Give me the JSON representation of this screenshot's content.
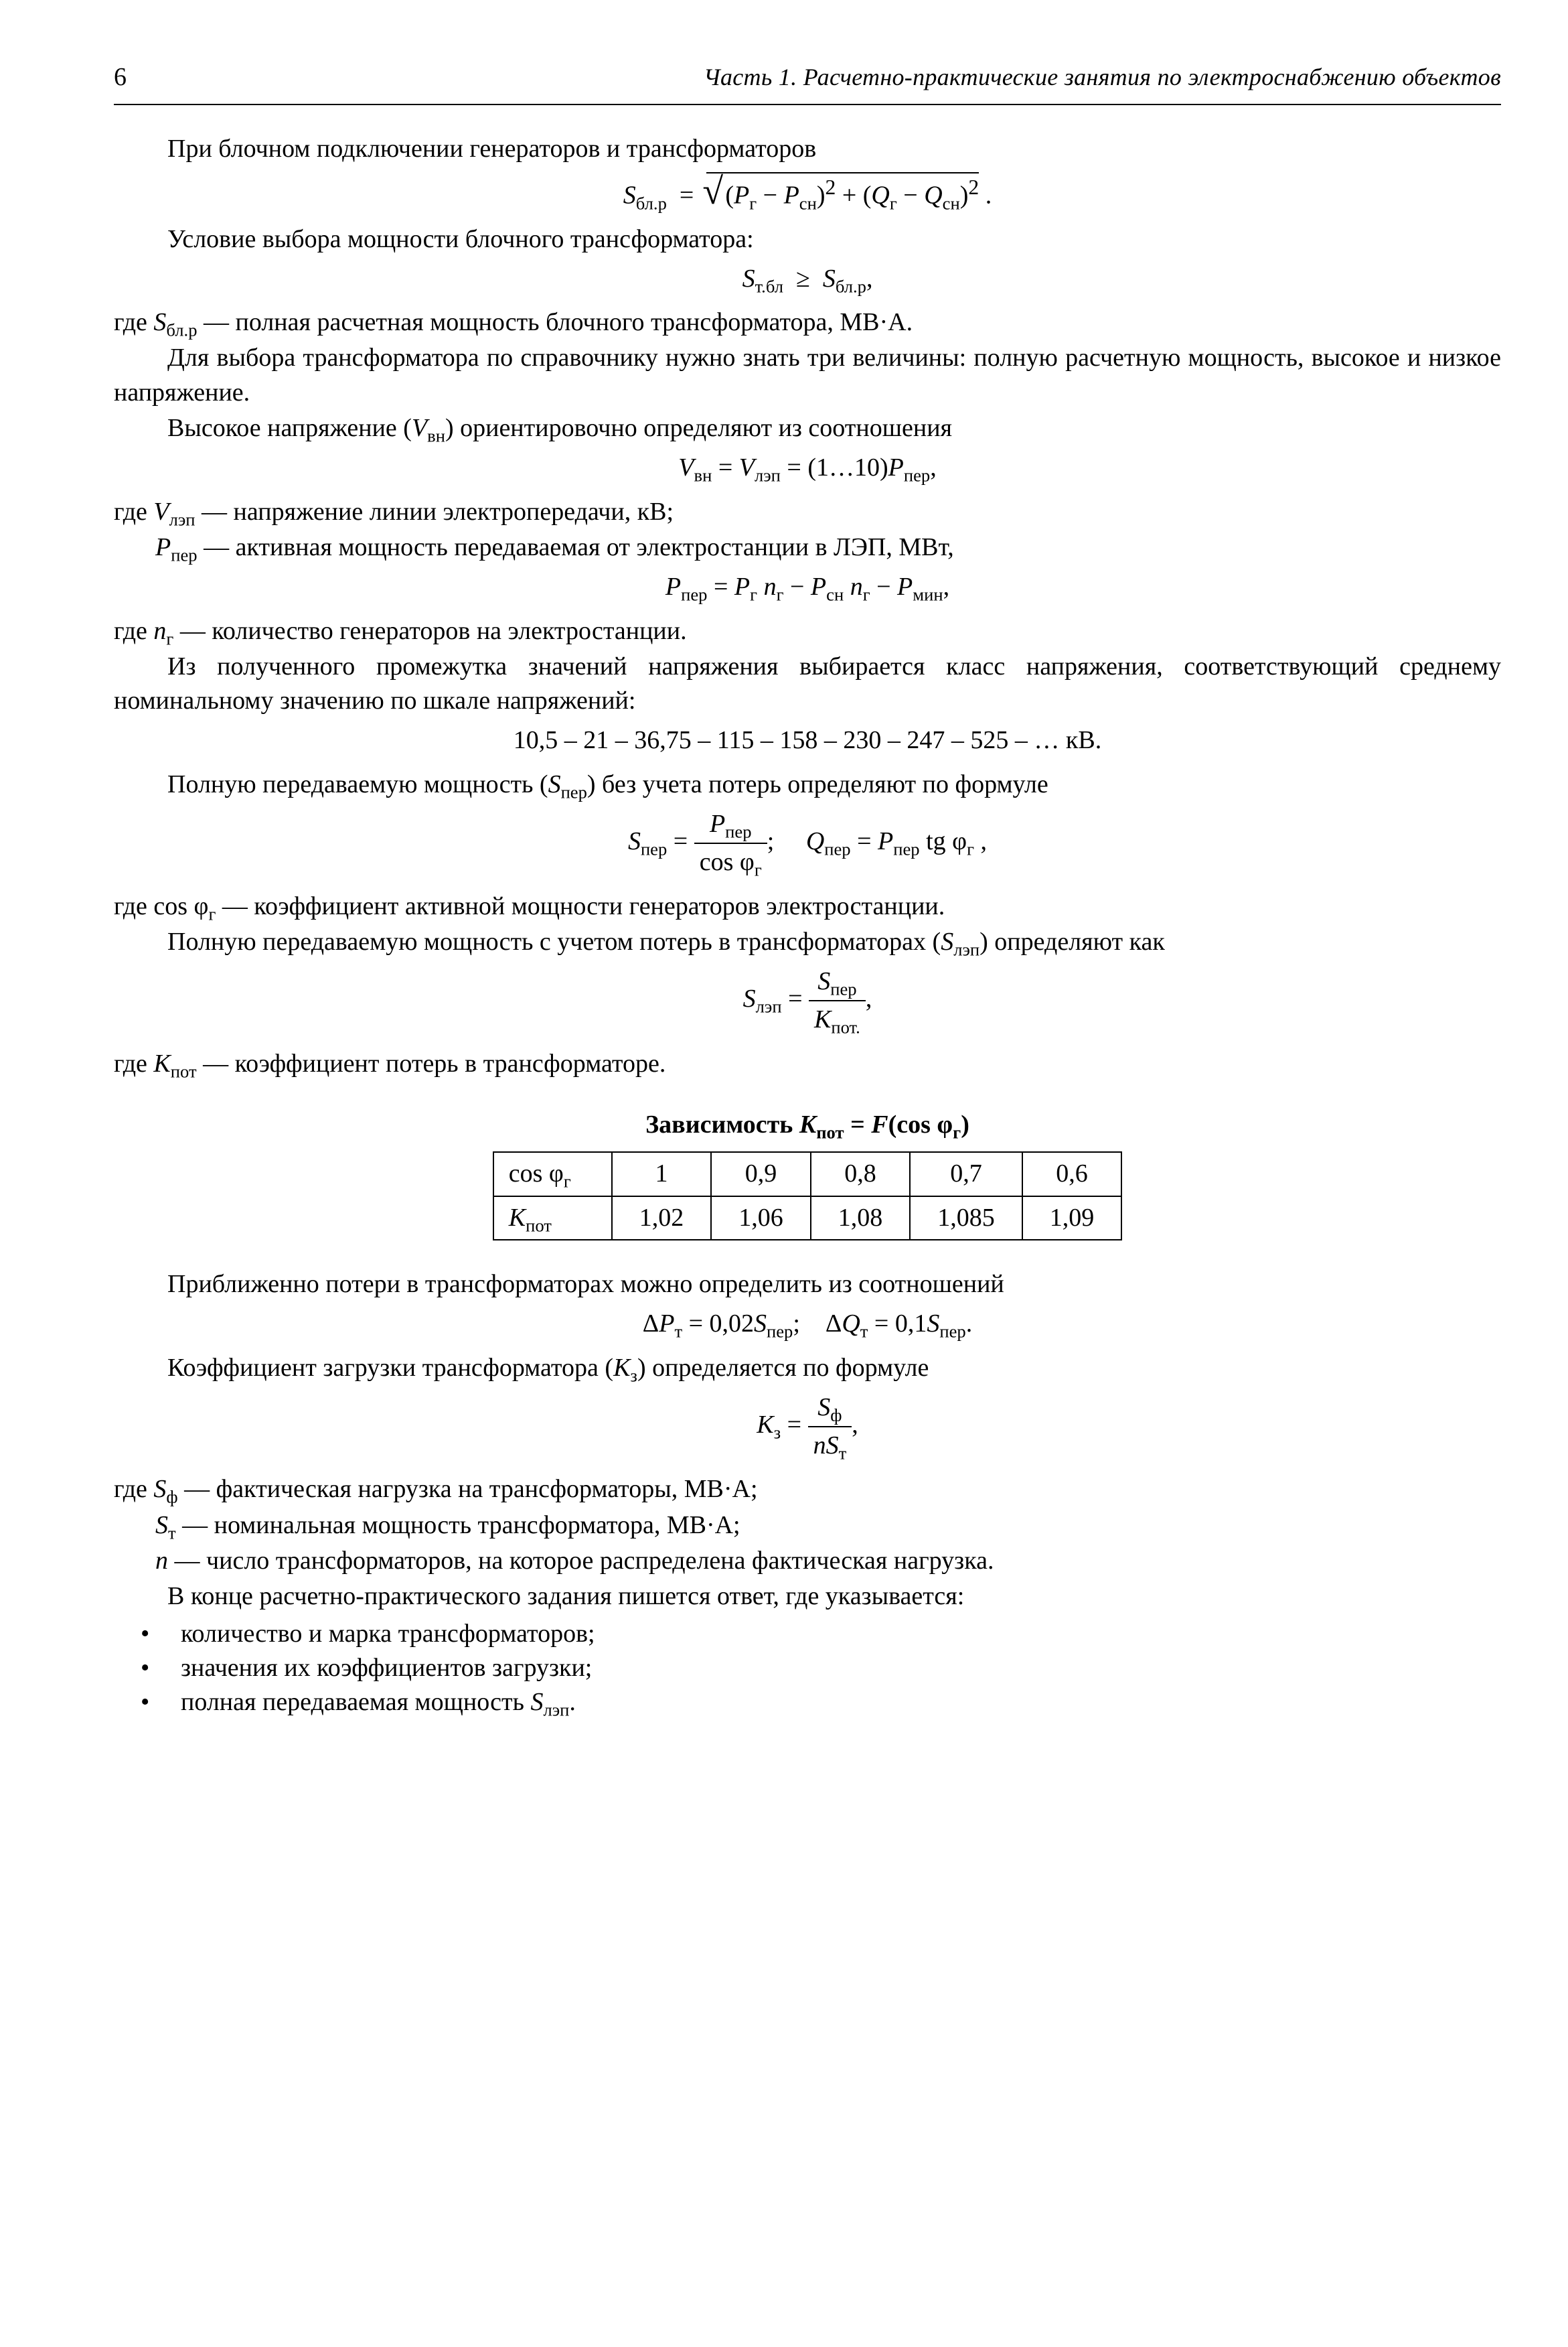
{
  "page_number": "6",
  "running_title": "Часть 1. Расчетно-практические занятия по электроснабжению объектов",
  "p_intro": "При блочном подключении генераторов и трансформаторов",
  "eq1": {
    "lhs": "S",
    "sub_lhs": "бл.р",
    "sqrt_inner": "(P_r − P_сн)² + (Q_r − Q_сн)² ."
  },
  "p_cond": "Условие выбора мощности блочного трансформатора:",
  "eq2": {
    "lhs": "S",
    "sub_lhs": "т.бл",
    "op": "≥",
    "rhs": "S",
    "sub_rhs": "бл.р",
    "tail": ","
  },
  "w1": {
    "sym": "S",
    "sub": "бл.р",
    "text": " — полная расчетная мощность блочного трансформатора, МВ·А."
  },
  "p_ref": "Для выбора трансформатора по справочнику нужно знать три величины: полную расчетную мощность, высокое и низкое напряжение.",
  "p_high": "Высокое напряжение (V_вн) ориентировочно определяют из соотношения",
  "eq3": {
    "l": "V",
    "ls": "вн",
    "m": "V",
    "ms": "лэп",
    "r_coef": "(1…10)",
    "r": "P",
    "rs": "пер",
    "tail": ","
  },
  "w2": [
    {
      "sym": "V",
      "sub": "лэп",
      "txt": " — напряжение линии электропередачи, кВ;"
    },
    {
      "sym": "P",
      "sub": "пер",
      "txt": " — активная мощность передаваемая от электростанции в ЛЭП, МВт,"
    }
  ],
  "eq4": {
    "lhs": "P",
    "lhs_sub": "пер",
    "t1": "P_r n_r",
    "t2": "P_сн n_r",
    "t3": "P_мин",
    "tail": ","
  },
  "w3": {
    "sym": "n",
    "sub": "г",
    "txt": " — количество генераторов на электростанции."
  },
  "p_range": "Из полученного промежутка значений напряжения выбирается класс напряжения, соответствующий среднему номинальному значению по шкале напряжений:",
  "eq5": "10,5 – 21 – 36,75 – 115 – 158 – 230 – 247 – 525 – … кВ.",
  "p_sper": "Полную передаваемую мощность (S_пер) без учета потерь определяют по формуле",
  "eq6": {
    "s": "S",
    "s_sub": "пер",
    "num": "P_пер",
    "den": "cos φ_r",
    "q": "Q",
    "q_sub": "пер",
    "q_rhs": "P_пер tg φ_r ,"
  },
  "w4": {
    "sym": "cos φ",
    "sub": "r",
    "txt": " — коэффициент активной мощности генераторов электростанции."
  },
  "p_slep": "Полную передаваемую мощность с учетом потерь в трансформаторах (S_лэп) определяют как",
  "eq7": {
    "lhs": "S",
    "lhs_sub": "лэп",
    "num": "S_пер",
    "den": "K_пот.",
    "tail": ","
  },
  "w5": {
    "sym": "K",
    "sub": "пот",
    "txt": " — коэффициент потерь в трансформаторе."
  },
  "table_title": "Зависимость K_пот = F(cos φ_r)",
  "table": {
    "row_labels": [
      "cos φ_r",
      "K_пот"
    ],
    "cols": [
      "1",
      "0,9",
      "0,8",
      "0,7",
      "0,6"
    ],
    "vals": [
      "1,02",
      "1,06",
      "1,08",
      "1,085",
      "1,09"
    ]
  },
  "p_approx": "Приближенно потери в трансформаторах можно определить из соотношений",
  "eq8": {
    "a": "ΔP_т = 0,02S_пер;",
    "b": "ΔQ_т = 0,1S_пер."
  },
  "p_kz": "Коэффициент загрузки трансформатора (K_з) определяется по формуле",
  "eq9": {
    "lhs": "K",
    "lhs_sub": "з",
    "num": "S_ф",
    "den": "nS_т",
    "tail": ","
  },
  "w6": [
    {
      "sym": "S",
      "sub": "ф",
      "txt": " — фактическая нагрузка на трансформаторы, МВ·А;"
    },
    {
      "sym": "S",
      "sub": "т",
      "txt": " — номинальная мощность трансформатора, МВ·А;"
    },
    {
      "sym": "n",
      "sub": "",
      "txt": " — число трансформаторов, на которое распределена фактическая нагрузка."
    }
  ],
  "p_end": "В конце расчетно-практического задания пишется ответ, где указывается:",
  "bullets": [
    "количество и марка трансформаторов;",
    "значения их коэффициентов загрузки;",
    "полная передаваемая мощность S_лэп."
  ]
}
